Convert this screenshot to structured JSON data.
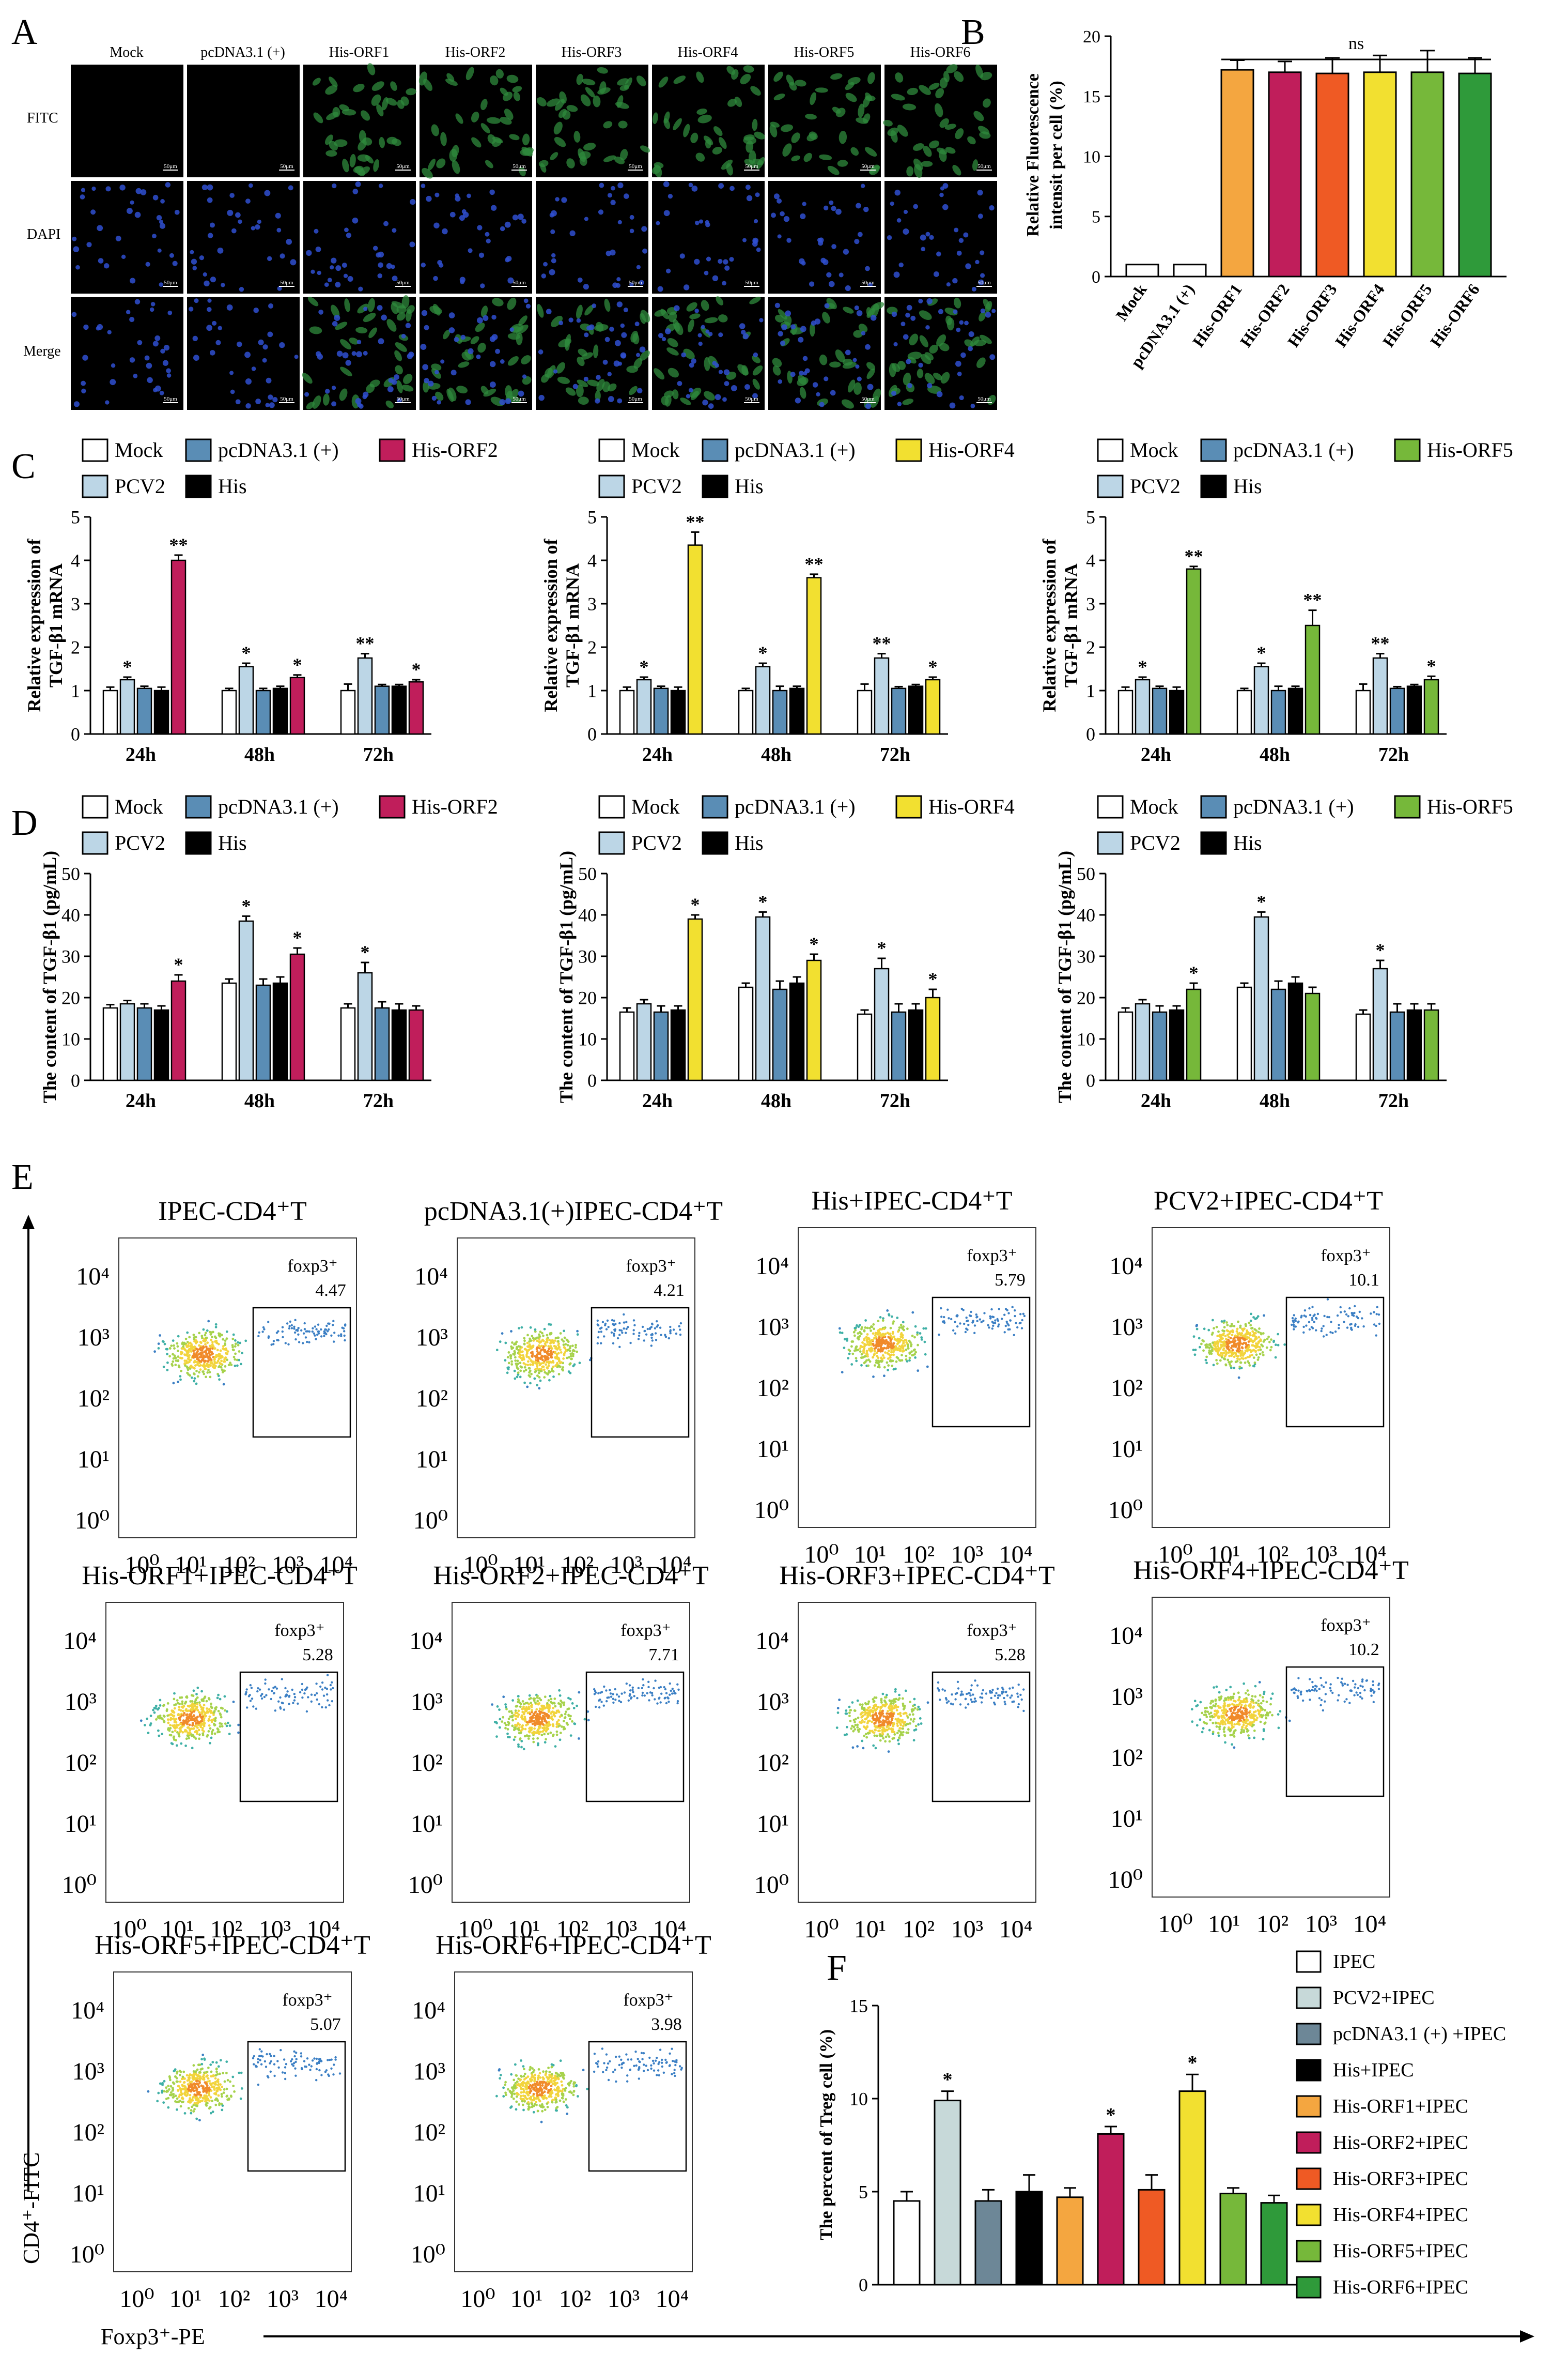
{
  "colors": {
    "mock": "#ffffff",
    "pcv2": "#bcd6e6",
    "pcdna": "#5a8db5",
    "his": "#000000",
    "orf1": "#f4a640",
    "orf2": "#c01e5b",
    "orf3": "#ef5a24",
    "orf4": "#f2e030",
    "orf5": "#76b83a",
    "orf6": "#2f9a3a",
    "ipec": "#ffffff",
    "pcv2_ipec": "#c7d9d9",
    "pcdna_ipec": "#6d8797"
  },
  "panels": {
    "A": {
      "letter": "A",
      "cols": [
        "Mock",
        "pcDNA3.1 (+)",
        "His-ORF1",
        "His-ORF2",
        "His-ORF3",
        "His-ORF4",
        "His-ORF5",
        "His-ORF6"
      ],
      "rows": [
        "FITC",
        "DAPI",
        "Merge"
      ],
      "scale": "50μm"
    },
    "B": {
      "letter": "B"
    },
    "C": {
      "letter": "C"
    },
    "D": {
      "letter": "D"
    },
    "E": {
      "letter": "E",
      "y_axis": "CD4⁺-FITC",
      "x_axis": "Foxp3⁺-PE",
      "gate_label": "foxp3⁺",
      "ticks_y": [
        "10⁴",
        "10³",
        "10²",
        "10¹",
        "10⁰"
      ],
      "ticks_x": [
        "10⁰",
        "10¹",
        "10²",
        "10³",
        "10⁴"
      ],
      "plots": [
        {
          "title": "IPEC-CD4⁺T",
          "value": "4.47"
        },
        {
          "title": "pcDNA3.1(+)IPEC-CD4⁺T",
          "value": "4.21"
        },
        {
          "title": "His+IPEC-CD4⁺T",
          "value": "5.79"
        },
        {
          "title": "PCV2+IPEC-CD4⁺T",
          "value": "10.1"
        },
        {
          "title": "His-ORF1+IPEC-CD4⁺T",
          "value": "5.28"
        },
        {
          "title": "His-ORF2+IPEC-CD4⁺T",
          "value": "7.71"
        },
        {
          "title": "His-ORF3+IPEC-CD4⁺T",
          "value": "5.28"
        },
        {
          "title": "His-ORF4+IPEC-CD4⁺T",
          "value": "10.2"
        },
        {
          "title": "His-ORF5+IPEC-CD4⁺T",
          "value": "5.07"
        },
        {
          "title": "His-ORF6+IPEC-CD4⁺T",
          "value": "3.98"
        }
      ]
    },
    "F": {
      "letter": "F"
    }
  },
  "chart_data": [
    {
      "id": "B",
      "type": "bar",
      "ylabel": "Relative Fluorescence intensit per cell (%)",
      "ylim": [
        0,
        20
      ],
      "yticks": [
        0,
        5,
        10,
        15,
        20
      ],
      "categories": [
        "Mock",
        "pcDNA3.1 (+)",
        "His-ORF1",
        "His-ORF2",
        "His-ORF3",
        "His-ORF4",
        "His-ORF5",
        "His-ORF6"
      ],
      "values": [
        1.0,
        1.0,
        17.2,
        17.0,
        16.9,
        17.0,
        17.0,
        16.9
      ],
      "errors": [
        0,
        0,
        0.8,
        0.9,
        1.3,
        1.4,
        1.8,
        1.3
      ],
      "colors": [
        "#ffffff",
        "#ffffff",
        "#f4a640",
        "#c01e5b",
        "#ef5a24",
        "#f2e030",
        "#76b83a",
        "#2f9a3a"
      ],
      "annotation": "ns"
    },
    {
      "id": "C1",
      "type": "bar",
      "ylabel": "Relative expression of TGF-β1 mRNA",
      "ylim": [
        0,
        5
      ],
      "yticks": [
        0,
        1,
        2,
        3,
        4,
        5
      ],
      "categories": [
        "24h",
        "48h",
        "72h"
      ],
      "legend": [
        "Mock",
        "pcDNA3.1 (+)",
        "His-ORF2",
        "PCV2",
        "His"
      ],
      "series": [
        {
          "name": "Mock",
          "color": "#ffffff",
          "values": [
            1.0,
            1.0,
            1.0
          ],
          "errors": [
            0.08,
            0.05,
            0.15
          ],
          "sig": [
            "",
            "",
            ""
          ]
        },
        {
          "name": "PCV2",
          "color": "#bcd6e6",
          "values": [
            1.25,
            1.55,
            1.75
          ],
          "errors": [
            0.06,
            0.08,
            0.1
          ],
          "sig": [
            "*",
            "*",
            "**"
          ]
        },
        {
          "name": "pcDNA3.1 (+)",
          "color": "#5a8db5",
          "values": [
            1.05,
            1.0,
            1.1
          ],
          "errors": [
            0.05,
            0.05,
            0.04
          ],
          "sig": [
            "",
            "",
            ""
          ]
        },
        {
          "name": "His",
          "color": "#000000",
          "values": [
            1.0,
            1.05,
            1.1
          ],
          "errors": [
            0.08,
            0.05,
            0.04
          ],
          "sig": [
            "",
            "",
            ""
          ]
        },
        {
          "name": "His-ORF2",
          "color": "#c01e5b",
          "values": [
            4.0,
            1.3,
            1.2
          ],
          "errors": [
            0.12,
            0.06,
            0.05
          ],
          "sig": [
            "**",
            "*",
            "*"
          ]
        }
      ]
    },
    {
      "id": "C2",
      "type": "bar",
      "ylabel": "Relative expression of TGF-β1 mRNA",
      "ylim": [
        0,
        5
      ],
      "yticks": [
        0,
        1,
        2,
        3,
        4,
        5
      ],
      "categories": [
        "24h",
        "48h",
        "72h"
      ],
      "legend": [
        "Mock",
        "pcDNA3.1 (+)",
        "His-ORF4",
        "PCV2",
        "His"
      ],
      "series": [
        {
          "name": "Mock",
          "color": "#ffffff",
          "values": [
            1.0,
            1.0,
            1.0
          ],
          "errors": [
            0.08,
            0.05,
            0.15
          ],
          "sig": [
            "",
            "",
            ""
          ]
        },
        {
          "name": "PCV2",
          "color": "#bcd6e6",
          "values": [
            1.25,
            1.55,
            1.75
          ],
          "errors": [
            0.06,
            0.08,
            0.1
          ],
          "sig": [
            "*",
            "*",
            "**"
          ]
        },
        {
          "name": "pcDNA3.1 (+)",
          "color": "#5a8db5",
          "values": [
            1.05,
            1.0,
            1.05
          ],
          "errors": [
            0.05,
            0.1,
            0.04
          ],
          "sig": [
            "",
            "",
            ""
          ]
        },
        {
          "name": "His",
          "color": "#000000",
          "values": [
            1.0,
            1.05,
            1.1
          ],
          "errors": [
            0.08,
            0.05,
            0.04
          ],
          "sig": [
            "",
            "",
            ""
          ]
        },
        {
          "name": "His-ORF4",
          "color": "#f2e030",
          "values": [
            4.35,
            3.6,
            1.25
          ],
          "errors": [
            0.3,
            0.08,
            0.06
          ],
          "sig": [
            "**",
            "**",
            "*"
          ]
        }
      ]
    },
    {
      "id": "C3",
      "type": "bar",
      "ylabel": "Relative expression of TGF-β1 mRNA",
      "ylim": [
        0,
        5
      ],
      "yticks": [
        0,
        1,
        2,
        3,
        4,
        5
      ],
      "categories": [
        "24h",
        "48h",
        "72h"
      ],
      "legend": [
        "Mock",
        "pcDNA3.1 (+)",
        "His-ORF5",
        "PCV2",
        "His"
      ],
      "series": [
        {
          "name": "Mock",
          "color": "#ffffff",
          "values": [
            1.0,
            1.0,
            1.0
          ],
          "errors": [
            0.08,
            0.05,
            0.15
          ],
          "sig": [
            "",
            "",
            ""
          ]
        },
        {
          "name": "PCV2",
          "color": "#bcd6e6",
          "values": [
            1.25,
            1.55,
            1.75
          ],
          "errors": [
            0.06,
            0.08,
            0.1
          ],
          "sig": [
            "*",
            "*",
            "**"
          ]
        },
        {
          "name": "pcDNA3.1 (+)",
          "color": "#5a8db5",
          "values": [
            1.05,
            1.0,
            1.05
          ],
          "errors": [
            0.05,
            0.1,
            0.04
          ],
          "sig": [
            "",
            "",
            ""
          ]
        },
        {
          "name": "His",
          "color": "#000000",
          "values": [
            1.0,
            1.05,
            1.1
          ],
          "errors": [
            0.08,
            0.05,
            0.04
          ],
          "sig": [
            "",
            "",
            ""
          ]
        },
        {
          "name": "His-ORF5",
          "color": "#76b83a",
          "values": [
            3.8,
            2.5,
            1.25
          ],
          "errors": [
            0.06,
            0.35,
            0.08
          ],
          "sig": [
            "**",
            "**",
            "*"
          ]
        }
      ]
    },
    {
      "id": "D1",
      "type": "bar",
      "ylabel": "The content of TGF-β1 (pg/mL)",
      "ylim": [
        0,
        50
      ],
      "yticks": [
        0,
        10,
        20,
        30,
        40,
        50
      ],
      "categories": [
        "24h",
        "48h",
        "72h"
      ],
      "legend": [
        "Mock",
        "pcDNA3.1 (+)",
        "His-ORF2",
        "PCV2",
        "His"
      ],
      "series": [
        {
          "name": "Mock",
          "color": "#ffffff",
          "values": [
            17.5,
            23.5,
            17.5
          ],
          "errors": [
            0.8,
            1.0,
            1.0
          ],
          "sig": [
            "",
            "",
            ""
          ]
        },
        {
          "name": "PCV2",
          "color": "#bcd6e6",
          "values": [
            18.5,
            38.5,
            26.0
          ],
          "errors": [
            0.8,
            1.2,
            2.5
          ],
          "sig": [
            "",
            "*",
            "*"
          ]
        },
        {
          "name": "pcDNA3.1 (+)",
          "color": "#5a8db5",
          "values": [
            17.5,
            23.0,
            17.5
          ],
          "errors": [
            1.0,
            1.5,
            1.5
          ],
          "sig": [
            "",
            "",
            ""
          ]
        },
        {
          "name": "His",
          "color": "#000000",
          "values": [
            17.0,
            23.5,
            17.0
          ],
          "errors": [
            1.0,
            1.5,
            1.5
          ],
          "sig": [
            "",
            "",
            ""
          ]
        },
        {
          "name": "His-ORF2",
          "color": "#c01e5b",
          "values": [
            24.0,
            30.5,
            17.0
          ],
          "errors": [
            1.5,
            1.5,
            1.0
          ],
          "sig": [
            "*",
            "*",
            ""
          ]
        }
      ]
    },
    {
      "id": "D2",
      "type": "bar",
      "ylabel": "The content of TGF-β1 (pg/mL)",
      "ylim": [
        0,
        50
      ],
      "yticks": [
        0,
        10,
        20,
        30,
        40,
        50
      ],
      "categories": [
        "24h",
        "48h",
        "72h"
      ],
      "legend": [
        "Mock",
        "pcDNA3.1 (+)",
        "His-ORF4",
        "PCV2",
        "His"
      ],
      "series": [
        {
          "name": "Mock",
          "color": "#ffffff",
          "values": [
            16.5,
            22.5,
            16.0
          ],
          "errors": [
            1.0,
            1.0,
            1.0
          ],
          "sig": [
            "",
            "",
            ""
          ]
        },
        {
          "name": "PCV2",
          "color": "#bcd6e6",
          "values": [
            18.5,
            39.5,
            27.0
          ],
          "errors": [
            1.0,
            1.2,
            2.5
          ],
          "sig": [
            "",
            "*",
            "*"
          ]
        },
        {
          "name": "pcDNA3.1 (+)",
          "color": "#5a8db5",
          "values": [
            16.5,
            22.0,
            16.5
          ],
          "errors": [
            1.5,
            2.0,
            2.0
          ],
          "sig": [
            "",
            "",
            ""
          ]
        },
        {
          "name": "His",
          "color": "#000000",
          "values": [
            17.0,
            23.5,
            17.0
          ],
          "errors": [
            1.0,
            1.5,
            1.5
          ],
          "sig": [
            "",
            "",
            ""
          ]
        },
        {
          "name": "His-ORF4",
          "color": "#f2e030",
          "values": [
            39.0,
            29.0,
            20.0
          ],
          "errors": [
            1.0,
            1.5,
            2.0
          ],
          "sig": [
            "*",
            "*",
            "*"
          ]
        }
      ]
    },
    {
      "id": "D3",
      "type": "bar",
      "ylabel": "The content of TGF-β1 (pg/mL)",
      "ylim": [
        0,
        50
      ],
      "yticks": [
        0,
        10,
        20,
        30,
        40,
        50
      ],
      "categories": [
        "24h",
        "48h",
        "72h"
      ],
      "legend": [
        "Mock",
        "pcDNA3.1 (+)",
        "His-ORF5",
        "PCV2",
        "His"
      ],
      "series": [
        {
          "name": "Mock",
          "color": "#ffffff",
          "values": [
            16.5,
            22.5,
            16.0
          ],
          "errors": [
            1.0,
            1.0,
            1.0
          ],
          "sig": [
            "",
            "",
            ""
          ]
        },
        {
          "name": "PCV2",
          "color": "#bcd6e6",
          "values": [
            18.5,
            39.5,
            27.0
          ],
          "errors": [
            1.0,
            1.2,
            2.0
          ],
          "sig": [
            "",
            "*",
            "*"
          ]
        },
        {
          "name": "pcDNA3.1 (+)",
          "color": "#5a8db5",
          "values": [
            16.5,
            22.0,
            16.5
          ],
          "errors": [
            1.5,
            2.0,
            2.0
          ],
          "sig": [
            "",
            "",
            ""
          ]
        },
        {
          "name": "His",
          "color": "#000000",
          "values": [
            17.0,
            23.5,
            17.0
          ],
          "errors": [
            1.0,
            1.5,
            1.5
          ],
          "sig": [
            "",
            "",
            ""
          ]
        },
        {
          "name": "His-ORF5",
          "color": "#76b83a",
          "values": [
            22.0,
            21.0,
            17.0
          ],
          "errors": [
            1.5,
            1.5,
            1.5
          ],
          "sig": [
            "*",
            "",
            ""
          ]
        }
      ]
    },
    {
      "id": "F",
      "type": "bar",
      "ylabel": "The percent of Treg cell (%)",
      "ylim": [
        0,
        15
      ],
      "yticks": [
        0,
        5,
        10,
        15
      ],
      "categories": [
        "IPEC",
        "PCV2+IPEC",
        "pcDNA3.1 (+) +IPEC",
        "His+IPEC",
        "His-ORF1+IPEC",
        "His-ORF2+IPEC",
        "His-ORF3+IPEC",
        "His-ORF4+IPEC",
        "His-ORF5+IPEC",
        "His-ORF6+IPEC"
      ],
      "values": [
        4.5,
        9.9,
        4.5,
        5.0,
        4.7,
        8.1,
        5.1,
        10.4,
        4.9,
        4.4
      ],
      "errors": [
        0.5,
        0.5,
        0.6,
        0.9,
        0.5,
        0.4,
        0.8,
        0.9,
        0.3,
        0.4
      ],
      "sig": [
        "",
        "*",
        "",
        "",
        "",
        "*",
        "",
        "*",
        "",
        ""
      ],
      "colors": [
        "#ffffff",
        "#c7d9d9",
        "#6d8797",
        "#000000",
        "#f4a640",
        "#c01e5b",
        "#ef5a24",
        "#f2e030",
        "#76b83a",
        "#2f9a3a"
      ]
    }
  ]
}
